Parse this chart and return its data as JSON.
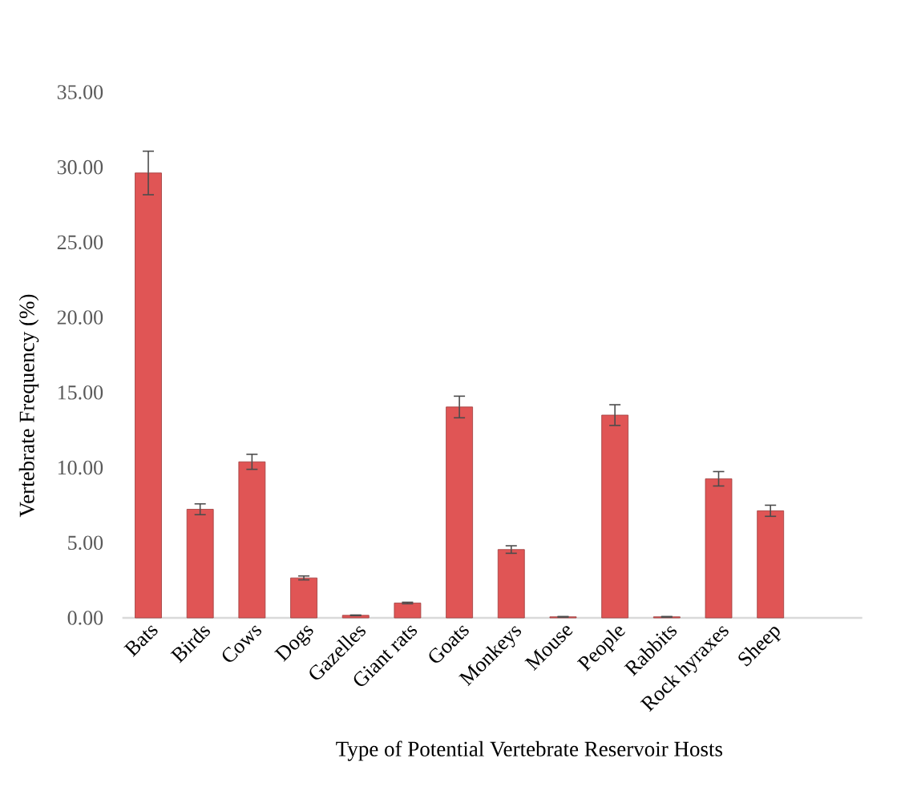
{
  "chart_data": {
    "type": "bar",
    "xlabel": "Type of Potential Vertebrate Reservoir Hosts",
    "ylabel": "Vertebrate Frequency (%)",
    "categories": [
      "Bats",
      "Birds",
      "Cows",
      "Dogs",
      "Gazelles",
      "Giant rats",
      "Goats",
      "Monkeys",
      "Mouse",
      "People",
      "Rabbits",
      "Rock hyraxes",
      "Sheep"
    ],
    "values": [
      29.62,
      7.23,
      10.39,
      2.66,
      0.17,
      0.99,
      14.04,
      4.55,
      0.07,
      13.5,
      0.07,
      9.26,
      7.13
    ],
    "errors": [
      1.45,
      0.36,
      0.5,
      0.13,
      0.02,
      0.05,
      0.72,
      0.25,
      0.02,
      0.69,
      0.02,
      0.48,
      0.37
    ],
    "color": "#e05555",
    "ylim": [
      0,
      35
    ],
    "yticks": [
      {
        "value": 0,
        "label": "0.00"
      },
      {
        "value": 5,
        "label": "5.00"
      },
      {
        "value": 10,
        "label": "10.00"
      },
      {
        "value": 15,
        "label": "15.00"
      },
      {
        "value": 20,
        "label": "20.00"
      },
      {
        "value": 25,
        "label": "25.00"
      },
      {
        "value": 30,
        "label": "30.00"
      },
      {
        "value": 35,
        "label": "35.00"
      }
    ]
  }
}
